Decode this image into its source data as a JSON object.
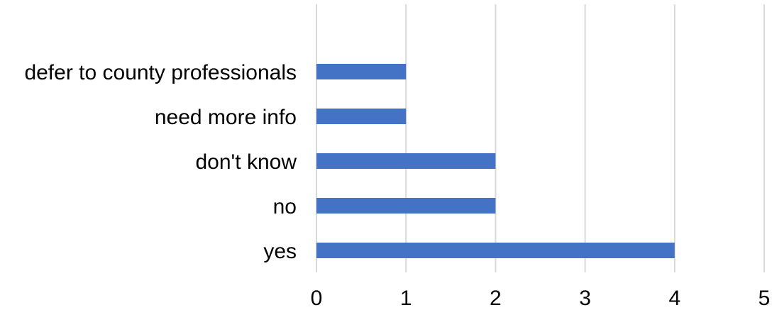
{
  "chart_data": {
    "type": "bar",
    "orientation": "horizontal",
    "categories": [
      "defer to county professionals",
      "need more info",
      "don't know",
      "no",
      "yes"
    ],
    "values": [
      1,
      1,
      2,
      2,
      4
    ],
    "xlim": [
      0,
      5
    ],
    "xticks": [
      "0",
      "1",
      "2",
      "3",
      "4",
      "5"
    ],
    "title": "",
    "xlabel": "",
    "ylabel": "",
    "grid": "vertical",
    "legend": "none",
    "bar_color": "#4472c4",
    "grid_color": "#d9d9d9"
  }
}
